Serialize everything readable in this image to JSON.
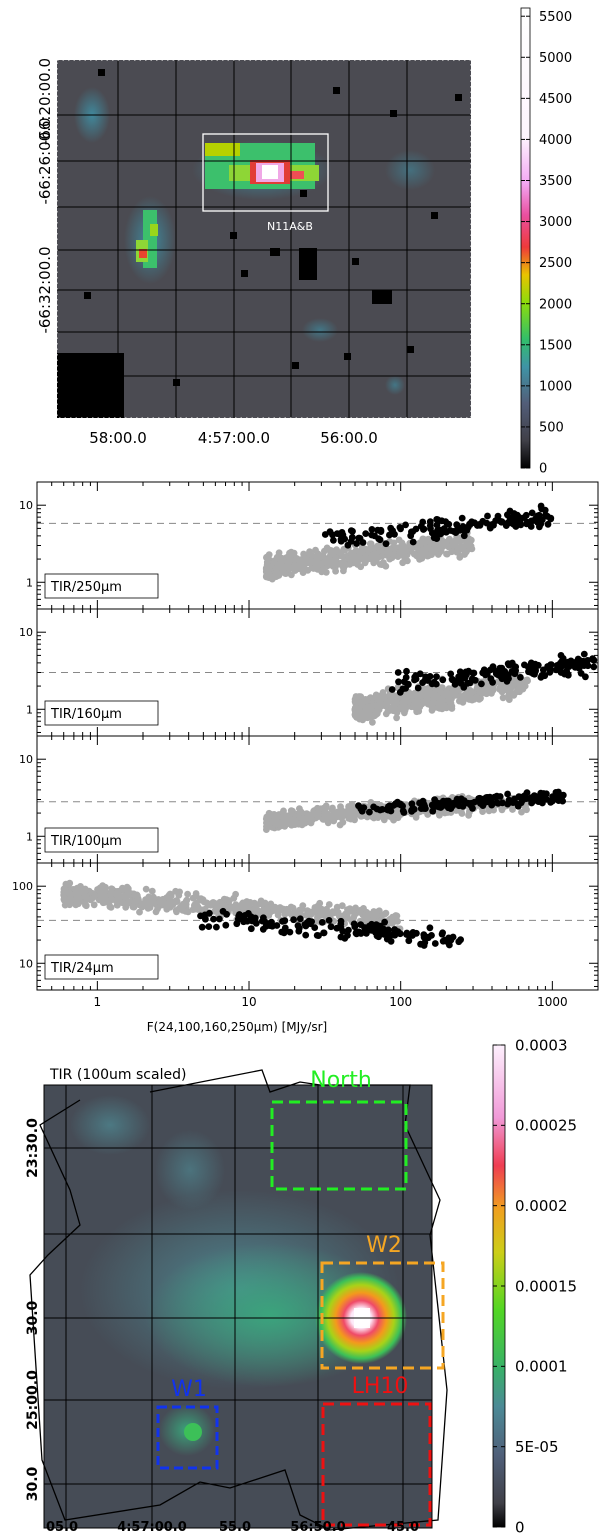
{
  "panel1": {
    "ytick_labels": [
      "-66:20:00.0",
      "-66:26:00.0",
      "-66:32:00.0"
    ],
    "xtick_labels": [
      "58:00.0",
      "4:57:00.0",
      "56:00.0"
    ],
    "box_label": "N11A&B",
    "colorbar": {
      "ticks": [
        "0",
        "500",
        "1000",
        "1500",
        "2000",
        "2500",
        "3000",
        "3500",
        "4000",
        "4500",
        "5000",
        "5500"
      ],
      "tick_values": [
        0,
        500,
        1000,
        1500,
        2000,
        2500,
        3000,
        3500,
        4000,
        4500,
        5000,
        5500
      ],
      "range": [
        0,
        5600
      ]
    }
  },
  "panel3": {
    "title": "TIR (100um scaled)",
    "ytick_labels": [
      "23:30.0",
      "30.0",
      "25:00.0",
      "30.0"
    ],
    "xtick_labels": [
      "05.0",
      "4:57:00.0",
      "55.0",
      "56:50.0",
      "45.0"
    ],
    "regions": [
      {
        "label": "North",
        "color": "#22ee22"
      },
      {
        "label": "W2",
        "color": "#f5a623"
      },
      {
        "label": "LH10",
        "color": "#ee1111"
      },
      {
        "label": "W1",
        "color": "#1133ee"
      }
    ],
    "colorbar": {
      "ticks": [
        "0",
        "5E-05",
        "0.0001",
        "0.00015",
        "0.0002",
        "0.00025",
        "0.0003"
      ],
      "tick_values": [
        0,
        5e-05,
        0.0001,
        0.00015,
        0.0002,
        0.00025,
        0.0003
      ],
      "range": [
        0,
        0.0003
      ]
    }
  },
  "chart_data": [
    {
      "type": "heatmap",
      "title": "",
      "xlabel": "",
      "ylabel": "",
      "x_tick_labels": [
        "58:00.0",
        "4:57:00.0",
        "56:00.0"
      ],
      "y_tick_labels": [
        "-66:20:00.0",
        "-66:26:00.0",
        "-66:32:00.0"
      ],
      "colorbar_range": [
        0,
        5500
      ],
      "annotations": [
        "N11A&B"
      ],
      "peak_value_approx": 5500
    },
    {
      "type": "scatter",
      "xlabel": "F(24,100,160,250μm) [MJy/sr]",
      "x_scale": "log",
      "xlim": [
        0.4,
        2000
      ],
      "x_tick_labels": [
        "1",
        "10",
        "100",
        "1000"
      ],
      "panels": [
        {
          "label": "TIR/250μm",
          "y_scale": "log",
          "ylim": [
            0.45,
            20
          ],
          "y_tick_labels": [
            "1",
            "10"
          ],
          "reference_line": 5.8,
          "series": [
            {
              "color": "#aaaaaa",
              "x_range": [
                13,
                300
              ],
              "y_range": [
                1.1,
                4.5
              ]
            },
            {
              "color": "#000000",
              "x_range": [
                30,
                1000
              ],
              "y_range": [
                2.5,
                10
              ]
            }
          ]
        },
        {
          "label": "TIR/160μm",
          "y_scale": "log",
          "ylim": [
            0.45,
            20
          ],
          "y_tick_labels": [
            "1",
            "10"
          ],
          "reference_line": 3.0,
          "series": [
            {
              "color": "#aaaaaa",
              "x_range": [
                50,
                700
              ],
              "y_range": [
                0.65,
                3.5
              ]
            },
            {
              "color": "#000000",
              "x_range": [
                80,
                1900
              ],
              "y_range": [
                1.5,
                5.5
              ]
            }
          ]
        },
        {
          "label": "TIR/100μm",
          "y_scale": "log",
          "ylim": [
            0.45,
            20
          ],
          "y_tick_labels": [
            "1",
            "10"
          ],
          "reference_line": 2.8,
          "series": [
            {
              "color": "#aaaaaa",
              "x_range": [
                13,
                700
              ],
              "y_range": [
                1.2,
                4.0
              ]
            },
            {
              "color": "#000000",
              "x_range": [
                50,
                1200
              ],
              "y_range": [
                1.8,
                4.0
              ]
            }
          ]
        },
        {
          "label": "TIR/24μm",
          "y_scale": "log",
          "ylim": [
            4.5,
            200
          ],
          "y_tick_labels": [
            "10",
            "100"
          ],
          "reference_line": 36,
          "series": [
            {
              "color": "#aaaaaa",
              "x_range": [
                0.6,
                100
              ],
              "y_range": [
                28,
                110
              ]
            },
            {
              "color": "#000000",
              "x_range": [
                4,
                250
              ],
              "y_range": [
                16,
                55
              ]
            }
          ]
        }
      ]
    },
    {
      "type": "heatmap",
      "title": "TIR (100um scaled)",
      "x_tick_labels": [
        "05.0",
        "4:57:00.0",
        "55.0",
        "56:50.0",
        "45.0"
      ],
      "y_tick_labels": [
        "23:30.0",
        "30.0",
        "25:00.0",
        "30.0"
      ],
      "colorbar_range": [
        0,
        0.0003
      ],
      "annotations": [
        "North",
        "W2",
        "LH10",
        "W1"
      ]
    }
  ]
}
